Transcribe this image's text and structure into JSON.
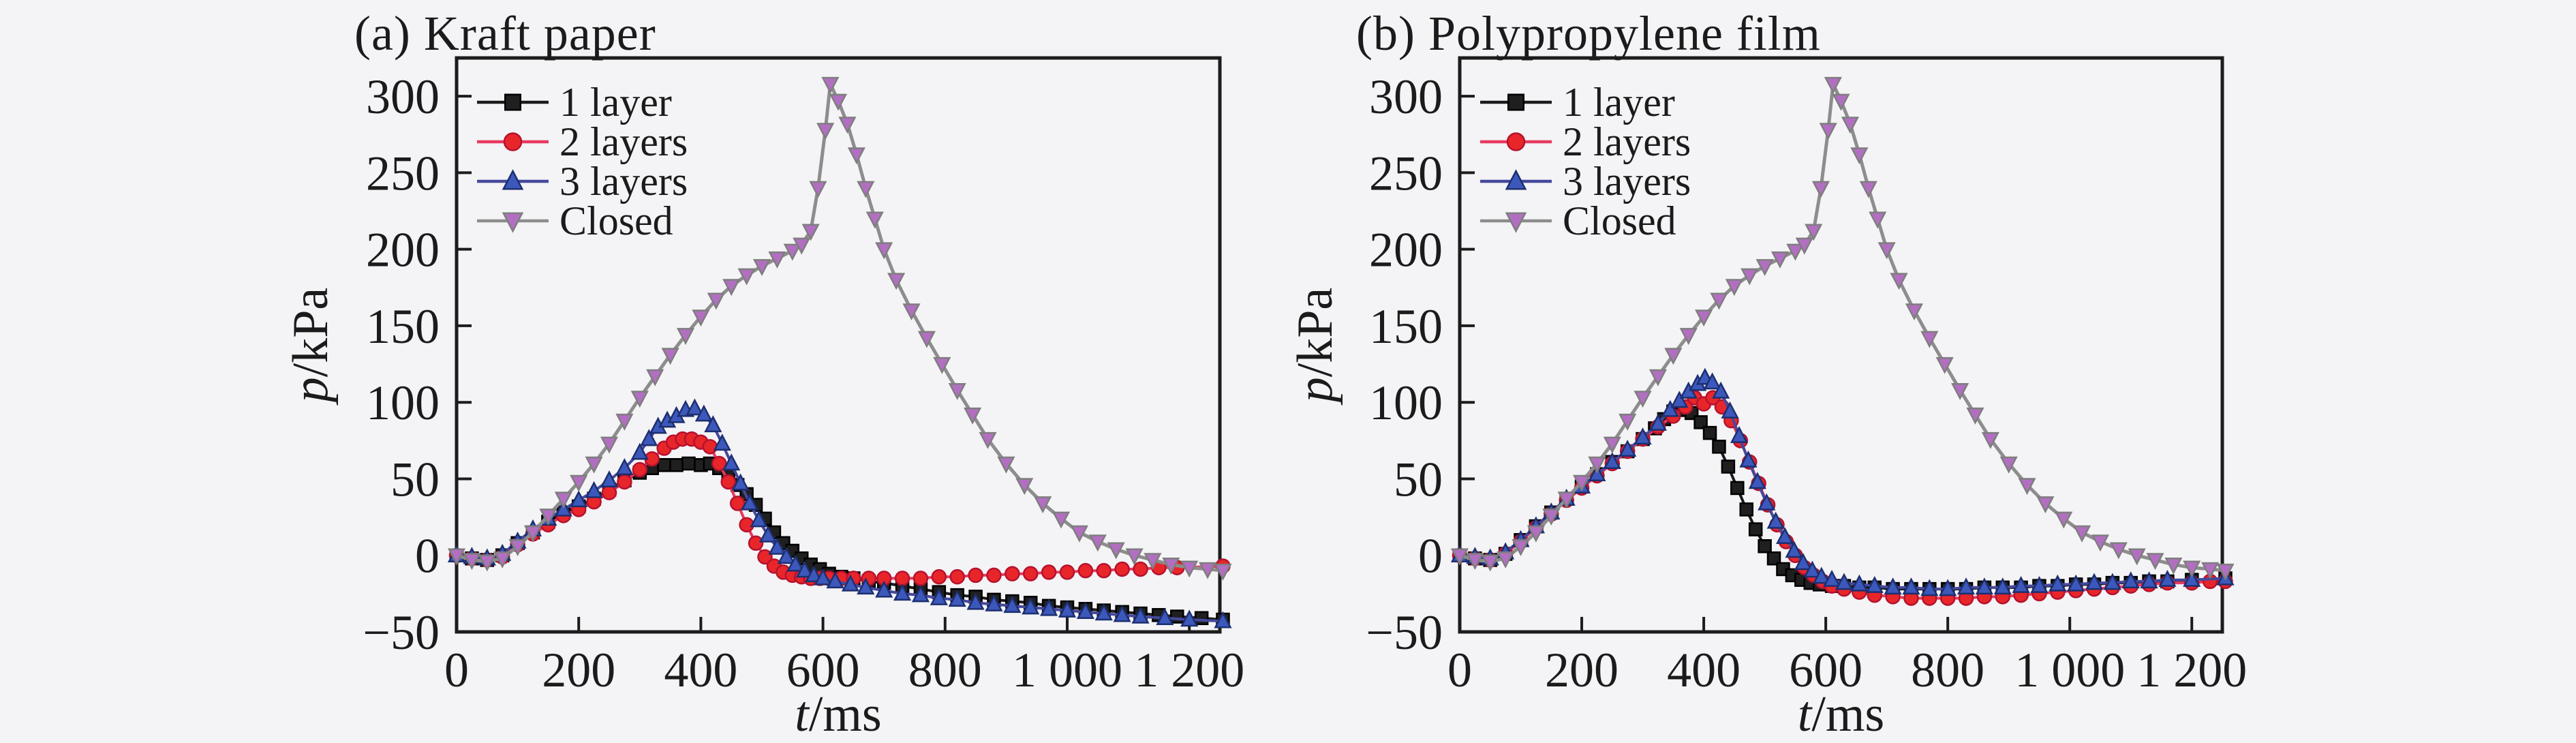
{
  "figure": {
    "background": "#f4f3f5",
    "text_color": "#1b1b1b",
    "axis_color": "#1c1c1c"
  },
  "chart_data": [
    {
      "type": "line",
      "title": "(a) Kraft paper",
      "xlabel": {
        "var": "t",
        "unit": "/ms"
      },
      "ylabel": {
        "var": "p",
        "unit": "/kPa"
      },
      "xlim": [
        0,
        1250
      ],
      "ylim": [
        -50,
        325
      ],
      "grid": false,
      "legend_position": "top-left",
      "xticks": {
        "values": [
          0,
          200,
          400,
          600,
          800,
          1000,
          1200
        ],
        "labels": [
          "0",
          "200",
          "400",
          "600",
          "800",
          "1 000",
          "1 200"
        ]
      },
      "yticks": {
        "values": [
          300,
          250,
          200,
          150,
          100,
          50,
          0,
          -50
        ],
        "labels": [
          "300",
          "250",
          "200",
          "150",
          "100",
          "50",
          "0",
          "−50"
        ]
      },
      "series": [
        {
          "name": "1 layer",
          "marker": "square",
          "line_color": "#1b1b1b",
          "marker_fill": "#1f1f1f",
          "marker_edge": "#000000",
          "x": [
            0,
            25,
            50,
            75,
            100,
            125,
            150,
            175,
            200,
            225,
            250,
            275,
            300,
            320,
            340,
            360,
            380,
            400,
            415,
            430,
            445,
            460,
            475,
            490,
            505,
            520,
            535,
            550,
            565,
            580,
            595,
            610,
            630,
            650,
            675,
            700,
            730,
            760,
            790,
            820,
            850,
            880,
            910,
            940,
            970,
            1000,
            1030,
            1060,
            1090,
            1120,
            1150,
            1180,
            1220,
            1255
          ],
          "y": [
            0,
            -2,
            -3,
            0,
            8,
            15,
            22,
            28,
            32,
            37,
            43,
            49,
            54,
            57,
            59,
            59,
            60,
            59,
            60,
            57,
            52,
            46,
            40,
            33,
            24,
            15,
            8,
            3,
            -2,
            -6,
            -9,
            -12,
            -14,
            -15,
            -17,
            -18,
            -20,
            -22,
            -24,
            -26,
            -27,
            -29,
            -30,
            -31,
            -33,
            -34,
            -35,
            -36,
            -37,
            -38,
            -39,
            -40,
            -41,
            -42
          ]
        },
        {
          "name": "2 layers",
          "marker": "circle",
          "line_color": "#e63a5f",
          "marker_fill": "#e8262a",
          "marker_edge": "#b5122e",
          "x": [
            0,
            25,
            50,
            75,
            100,
            125,
            150,
            175,
            200,
            225,
            250,
            275,
            300,
            320,
            340,
            355,
            370,
            385,
            400,
            415,
            430,
            445,
            460,
            475,
            490,
            505,
            520,
            535,
            550,
            565,
            580,
            595,
            610,
            630,
            650,
            675,
            700,
            730,
            760,
            790,
            820,
            850,
            880,
            910,
            940,
            970,
            1000,
            1030,
            1060,
            1090,
            1120,
            1150,
            1180,
            1255
          ],
          "y": [
            0,
            -2,
            -3,
            -1,
            7,
            14,
            20,
            26,
            30,
            35,
            41,
            48,
            56,
            63,
            70,
            74,
            76,
            76,
            74,
            71,
            60,
            48,
            34,
            20,
            8,
            -1,
            -7,
            -11,
            -13,
            -14,
            -15,
            -15,
            -15,
            -15,
            -15,
            -15,
            -15,
            -15,
            -15,
            -14,
            -14,
            -13,
            -13,
            -12,
            -12,
            -11,
            -11,
            -10,
            -10,
            -9,
            -9,
            -8,
            -8,
            -7
          ]
        },
        {
          "name": "3 layers",
          "marker": "triangle-up",
          "line_color": "#45489c",
          "marker_fill": "#3c58bb",
          "marker_edge": "#1c2f70",
          "x": [
            0,
            25,
            50,
            75,
            100,
            125,
            150,
            175,
            200,
            225,
            250,
            275,
            300,
            315,
            330,
            345,
            360,
            375,
            390,
            405,
            420,
            435,
            450,
            465,
            480,
            495,
            510,
            525,
            540,
            555,
            570,
            585,
            600,
            620,
            645,
            670,
            700,
            730,
            760,
            790,
            820,
            850,
            880,
            910,
            940,
            970,
            1000,
            1030,
            1060,
            1090,
            1120,
            1160,
            1200,
            1255
          ],
          "y": [
            0,
            -1,
            -2,
            1,
            9,
            17,
            24,
            30,
            36,
            42,
            49,
            57,
            67,
            76,
            84,
            88,
            91,
            95,
            96,
            92,
            85,
            73,
            60,
            47,
            34,
            23,
            13,
            5,
            -1,
            -6,
            -10,
            -13,
            -15,
            -17,
            -19,
            -21,
            -23,
            -25,
            -26,
            -28,
            -29,
            -31,
            -32,
            -33,
            -34,
            -35,
            -36,
            -37,
            -38,
            -39,
            -40,
            -41,
            -42,
            -43
          ]
        },
        {
          "name": "Closed",
          "marker": "triangle-down",
          "line_color": "#8d8d8d",
          "marker_fill": "#b26fc1",
          "marker_edge": "#7e7e7e",
          "x": [
            0,
            25,
            50,
            75,
            100,
            125,
            150,
            175,
            200,
            225,
            250,
            275,
            300,
            325,
            350,
            375,
            400,
            425,
            450,
            475,
            500,
            525,
            550,
            565,
            580,
            592,
            604,
            612,
            625,
            640,
            655,
            670,
            685,
            700,
            720,
            745,
            770,
            795,
            820,
            845,
            870,
            900,
            930,
            960,
            990,
            1020,
            1050,
            1080,
            1110,
            1140,
            1170,
            1200,
            1230,
            1255
          ],
          "y": [
            0,
            -3,
            -4,
            -2,
            6,
            15,
            26,
            37,
            48,
            60,
            73,
            88,
            103,
            117,
            131,
            144,
            156,
            167,
            176,
            183,
            189,
            194,
            199,
            203,
            212,
            240,
            278,
            308,
            297,
            282,
            262,
            240,
            220,
            200,
            180,
            160,
            142,
            125,
            108,
            92,
            76,
            60,
            46,
            34,
            24,
            15,
            9,
            4,
            0,
            -3,
            -6,
            -8,
            -9,
            -10
          ]
        }
      ]
    },
    {
      "type": "line",
      "title": "(b) Polypropylene film",
      "xlabel": {
        "var": "t",
        "unit": "/ms"
      },
      "ylabel": {
        "var": "p",
        "unit": "/kPa"
      },
      "xlim": [
        0,
        1250
      ],
      "ylim": [
        -50,
        325
      ],
      "grid": false,
      "legend_position": "top-left",
      "xticks": {
        "values": [
          0,
          200,
          400,
          600,
          800,
          1000,
          1200
        ],
        "labels": [
          "0",
          "200",
          "400",
          "600",
          "800",
          "1 000",
          "1 200"
        ]
      },
      "yticks": {
        "values": [
          300,
          250,
          200,
          150,
          100,
          50,
          0,
          -50
        ],
        "labels": [
          "300",
          "250",
          "200",
          "150",
          "100",
          "50",
          "0",
          "−50"
        ]
      },
      "series": [
        {
          "name": "1 layer",
          "marker": "square",
          "line_color": "#1b1b1b",
          "marker_fill": "#1f1f1f",
          "marker_edge": "#000000",
          "x": [
            0,
            25,
            50,
            75,
            100,
            125,
            150,
            175,
            200,
            225,
            250,
            275,
            300,
            320,
            335,
            350,
            365,
            380,
            395,
            410,
            425,
            440,
            455,
            470,
            485,
            500,
            515,
            530,
            545,
            560,
            575,
            590,
            610,
            630,
            655,
            680,
            710,
            740,
            770,
            800,
            830,
            860,
            890,
            920,
            950,
            980,
            1010,
            1040,
            1070,
            1100,
            1130,
            1160,
            1200,
            1255
          ],
          "y": [
            0,
            -2,
            -3,
            1,
            10,
            19,
            28,
            37,
            45,
            53,
            61,
            68,
            76,
            83,
            89,
            94,
            95,
            93,
            87,
            80,
            71,
            58,
            44,
            30,
            17,
            6,
            -2,
            -9,
            -13,
            -16,
            -18,
            -19,
            -20,
            -20,
            -21,
            -21,
            -22,
            -22,
            -22,
            -22,
            -22,
            -21,
            -21,
            -21,
            -20,
            -20,
            -19,
            -19,
            -18,
            -18,
            -17,
            -17,
            -16,
            -15
          ]
        },
        {
          "name": "2 layers",
          "marker": "circle",
          "line_color": "#e63a5f",
          "marker_fill": "#e8262a",
          "marker_edge": "#b5122e",
          "x": [
            0,
            25,
            50,
            75,
            100,
            125,
            150,
            175,
            200,
            225,
            250,
            275,
            300,
            325,
            350,
            370,
            385,
            400,
            415,
            430,
            445,
            460,
            475,
            490,
            505,
            520,
            535,
            550,
            565,
            580,
            595,
            610,
            630,
            655,
            680,
            710,
            740,
            770,
            800,
            830,
            860,
            890,
            920,
            950,
            980,
            1010,
            1040,
            1070,
            1100,
            1130,
            1160,
            1200,
            1230,
            1255
          ],
          "y": [
            0,
            -2,
            -3,
            1,
            9,
            18,
            27,
            36,
            44,
            52,
            60,
            68,
            76,
            84,
            91,
            97,
            103,
            99,
            103,
            97,
            88,
            75,
            61,
            47,
            33,
            20,
            9,
            0,
            -8,
            -13,
            -17,
            -20,
            -22,
            -24,
            -26,
            -27,
            -28,
            -28,
            -28,
            -28,
            -27,
            -27,
            -26,
            -25,
            -24,
            -23,
            -22,
            -21,
            -20,
            -19,
            -18,
            -18,
            -17,
            -17
          ]
        },
        {
          "name": "3 layers",
          "marker": "triangle-up",
          "line_color": "#45489c",
          "marker_fill": "#3c58bb",
          "marker_edge": "#1c2f70",
          "x": [
            0,
            25,
            50,
            75,
            100,
            125,
            150,
            175,
            200,
            225,
            250,
            275,
            300,
            325,
            345,
            360,
            375,
            390,
            402,
            414,
            428,
            443,
            458,
            473,
            488,
            503,
            518,
            533,
            548,
            563,
            578,
            593,
            610,
            630,
            655,
            680,
            710,
            740,
            770,
            800,
            830,
            860,
            890,
            920,
            950,
            980,
            1010,
            1040,
            1070,
            1100,
            1130,
            1160,
            1200,
            1255
          ],
          "y": [
            0,
            -1,
            -2,
            2,
            10,
            19,
            28,
            37,
            45,
            53,
            61,
            69,
            77,
            86,
            95,
            101,
            107,
            112,
            116,
            113,
            107,
            94,
            78,
            62,
            48,
            34,
            22,
            12,
            3,
            -5,
            -10,
            -14,
            -16,
            -18,
            -19,
            -20,
            -21,
            -21,
            -22,
            -22,
            -21,
            -21,
            -21,
            -20,
            -20,
            -19,
            -19,
            -18,
            -18,
            -17,
            -17,
            -16,
            -16,
            -15
          ]
        },
        {
          "name": "Closed",
          "marker": "triangle-down",
          "line_color": "#8d8d8d",
          "marker_fill": "#b26fc1",
          "marker_edge": "#7e7e7e",
          "x": [
            0,
            25,
            50,
            75,
            100,
            125,
            150,
            175,
            200,
            225,
            250,
            275,
            300,
            325,
            350,
            375,
            400,
            425,
            450,
            475,
            500,
            525,
            550,
            565,
            580,
            592,
            604,
            612,
            625,
            640,
            655,
            670,
            685,
            700,
            720,
            745,
            770,
            795,
            820,
            845,
            870,
            900,
            930,
            960,
            990,
            1020,
            1050,
            1080,
            1110,
            1140,
            1170,
            1200,
            1230,
            1255
          ],
          "y": [
            0,
            -3,
            -4,
            -2,
            6,
            15,
            26,
            37,
            48,
            60,
            73,
            88,
            103,
            117,
            131,
            144,
            156,
            167,
            176,
            183,
            189,
            194,
            199,
            203,
            212,
            240,
            278,
            308,
            297,
            282,
            262,
            240,
            220,
            200,
            180,
            160,
            142,
            125,
            108,
            92,
            76,
            60,
            46,
            34,
            24,
            15,
            9,
            4,
            0,
            -3,
            -6,
            -8,
            -9,
            -10
          ]
        }
      ]
    }
  ]
}
